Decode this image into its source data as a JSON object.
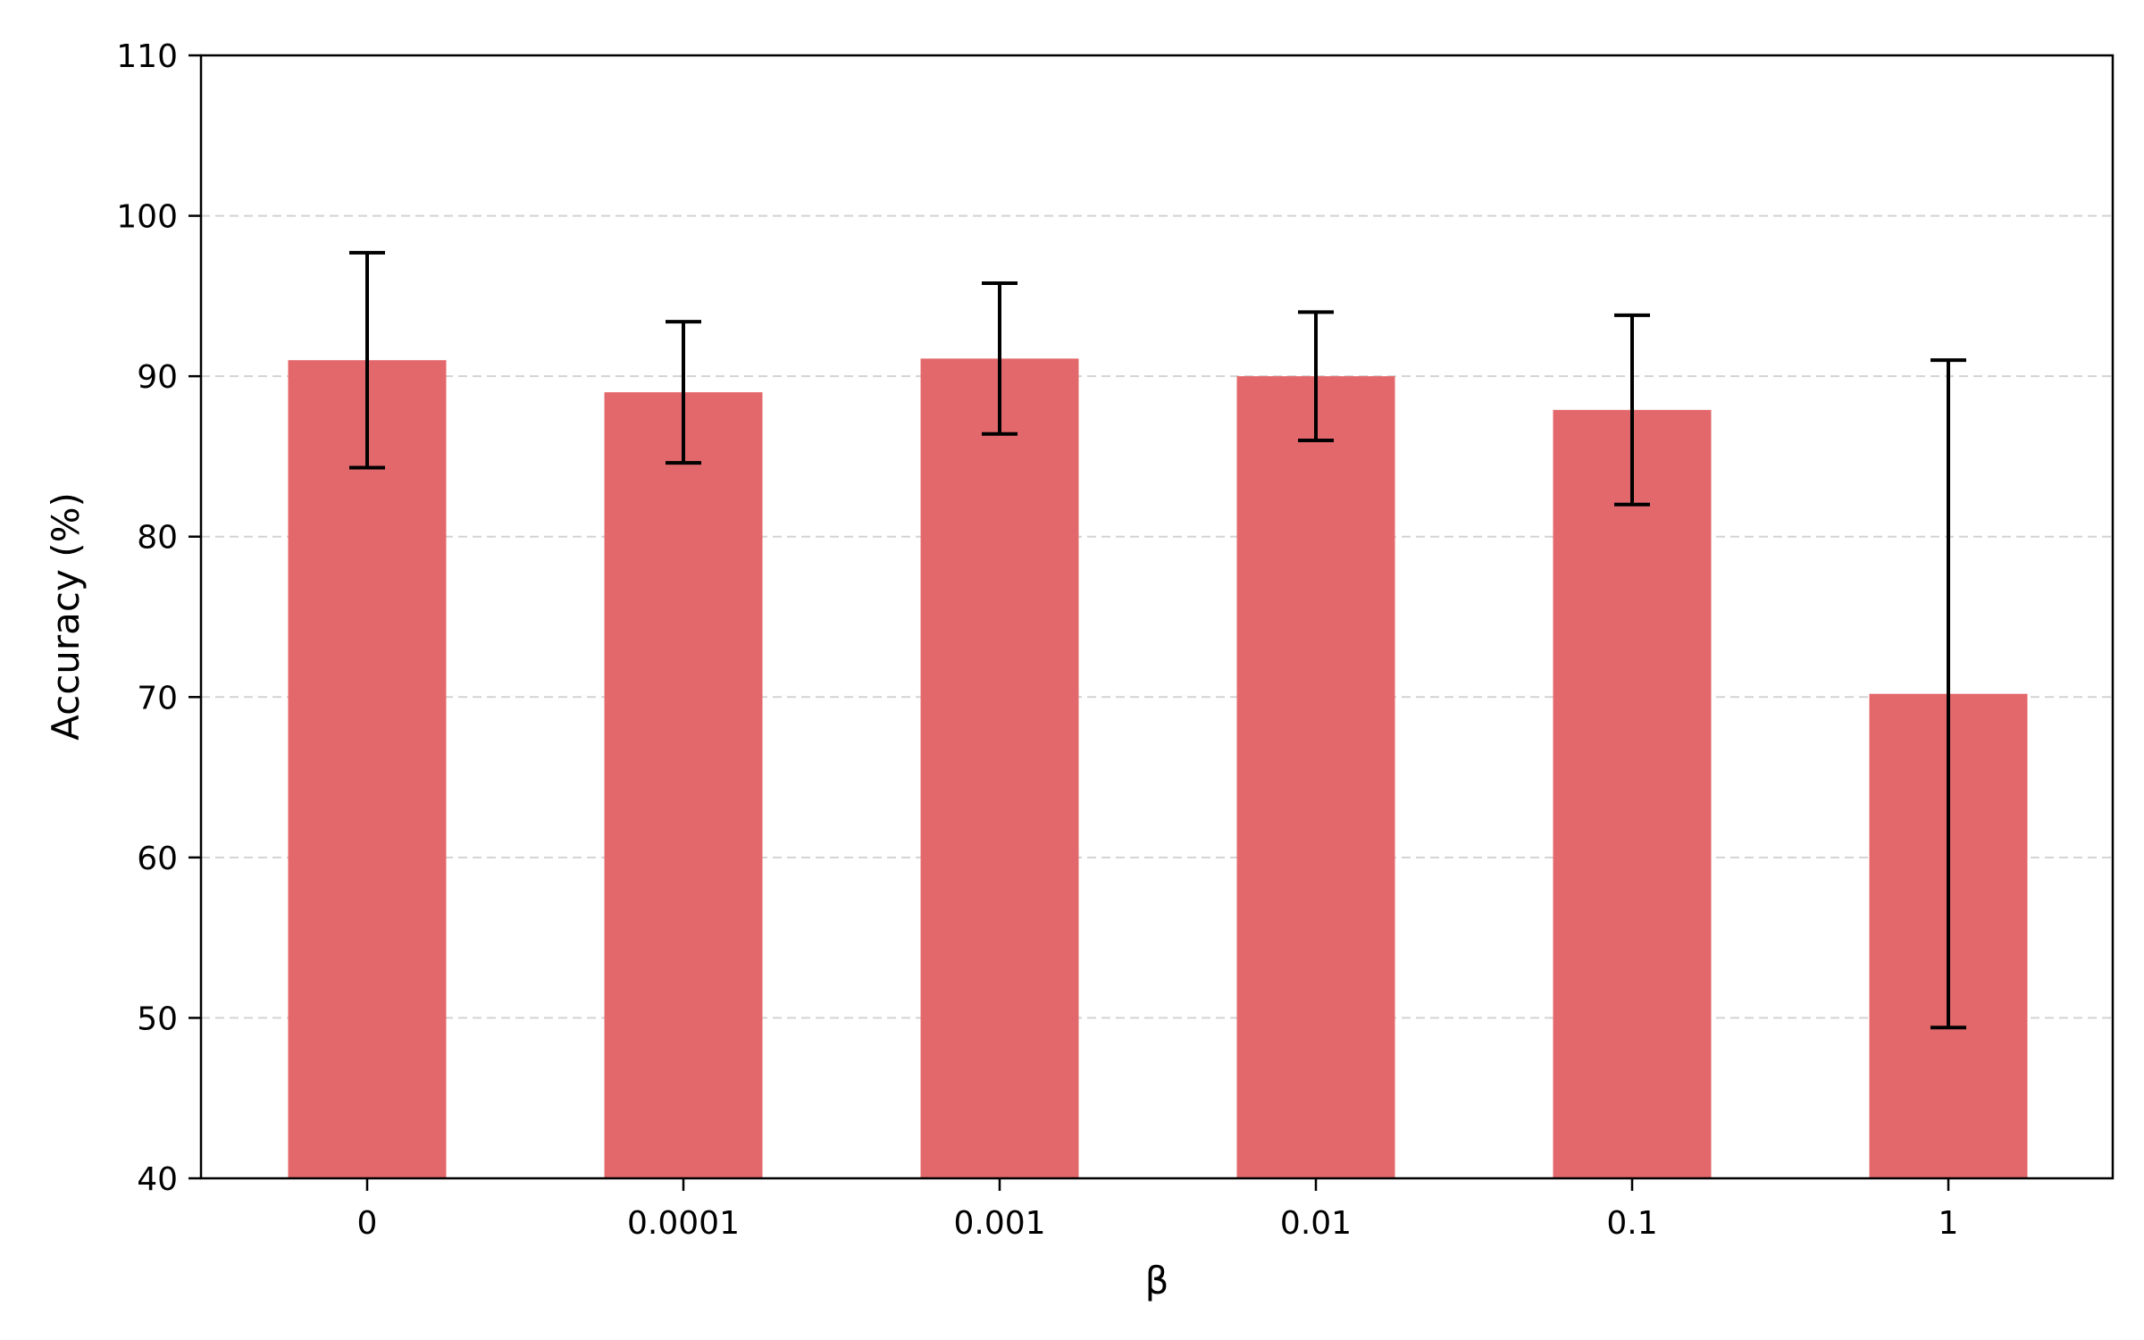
{
  "chart_data": {
    "type": "bar",
    "title": "",
    "xlabel": "β",
    "ylabel": "Accuracy (%)",
    "categories": [
      "0",
      "0.0001",
      "0.001",
      "0.01",
      "0.1",
      "1"
    ],
    "values": [
      91.0,
      89.0,
      91.1,
      90.0,
      87.9,
      70.2
    ],
    "errors": [
      6.7,
      4.4,
      4.7,
      4.0,
      5.9,
      20.8
    ],
    "ylim": [
      40,
      110
    ],
    "yticks": [
      40,
      50,
      60,
      70,
      80,
      90,
      100,
      110
    ],
    "grid": "y, dashed",
    "bar_color": "#e3686b",
    "error_color": "#000000",
    "grid_color": "#d3d3d3",
    "axis_color": "#000000"
  }
}
